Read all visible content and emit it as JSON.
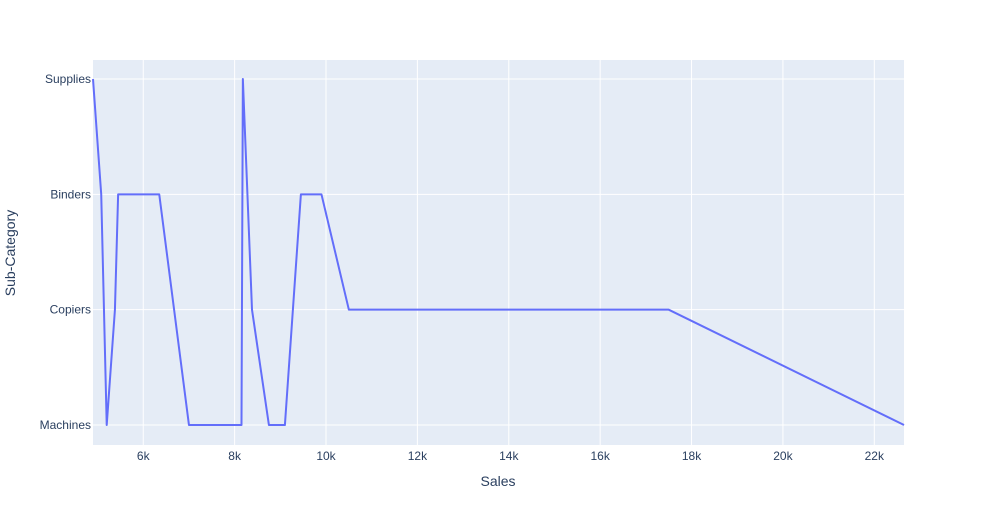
{
  "chart_data": {
    "type": "line",
    "xlabel": "Sales",
    "ylabel": "Sub-Category",
    "xlim": [
      4900,
      22650
    ],
    "x_ticks": [
      {
        "value": 6000,
        "label": "6k"
      },
      {
        "value": 8000,
        "label": "8k"
      },
      {
        "value": 10000,
        "label": "10k"
      },
      {
        "value": 12000,
        "label": "12k"
      },
      {
        "value": 14000,
        "label": "14k"
      },
      {
        "value": 16000,
        "label": "16k"
      },
      {
        "value": 18000,
        "label": "18k"
      },
      {
        "value": 20000,
        "label": "20k"
      },
      {
        "value": 22000,
        "label": "22k"
      }
    ],
    "categories": [
      "Machines",
      "Copiers",
      "Binders",
      "Supplies"
    ],
    "grid": true,
    "colors": {
      "line": "#636efa",
      "plot_bg": "#e5ecf6",
      "grid": "#ffffff",
      "text": "#2a3f5f"
    },
    "points": [
      {
        "x": 4900,
        "y": "Supplies"
      },
      {
        "x": 5080,
        "y": "Binders"
      },
      {
        "x": 5200,
        "y": "Machines"
      },
      {
        "x": 5380,
        "y": "Copiers"
      },
      {
        "x": 5450,
        "y": "Binders"
      },
      {
        "x": 6350,
        "y": "Binders"
      },
      {
        "x": 7000,
        "y": "Machines"
      },
      {
        "x": 8150,
        "y": "Machines"
      },
      {
        "x": 8180,
        "y": "Supplies"
      },
      {
        "x": 8380,
        "y": "Copiers"
      },
      {
        "x": 8750,
        "y": "Machines"
      },
      {
        "x": 9100,
        "y": "Machines"
      },
      {
        "x": 9450,
        "y": "Binders"
      },
      {
        "x": 9900,
        "y": "Binders"
      },
      {
        "x": 10500,
        "y": "Copiers"
      },
      {
        "x": 17500,
        "y": "Copiers"
      },
      {
        "x": 22650,
        "y": "Machines"
      }
    ]
  }
}
